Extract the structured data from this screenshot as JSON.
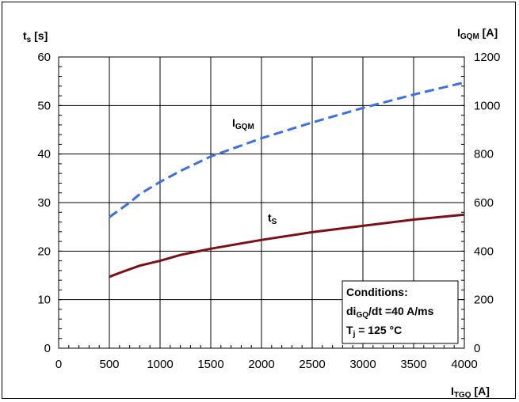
{
  "chart_data": {
    "type": "line",
    "x_axis": {
      "label_main": "I",
      "label_sub": "TGQ",
      "label_unit": "[A]",
      "range": [
        0,
        4000
      ],
      "ticks": [
        0,
        500,
        1000,
        1500,
        2000,
        2500,
        3000,
        3500,
        4000
      ],
      "tick_labels": [
        "0",
        "500",
        "1000",
        "1500",
        "2000",
        "2500",
        "3000",
        "3500",
        "4000"
      ]
    },
    "y_left": {
      "label_main": "t",
      "label_sub": "s",
      "label_unit": "[s]",
      "range": [
        0,
        60
      ],
      "ticks": [
        0,
        10,
        20,
        30,
        40,
        50,
        60
      ],
      "tick_labels": [
        "0",
        "10",
        "20",
        "30",
        "40",
        "50",
        "60"
      ]
    },
    "y_right": {
      "label_main": "I",
      "label_sub": "GQM",
      "label_unit": "[A]",
      "range": [
        0,
        1200
      ],
      "ticks": [
        0,
        200,
        400,
        600,
        800,
        1000,
        1200
      ],
      "tick_labels": [
        "0",
        "200",
        "400",
        "600",
        "800",
        "1000",
        "1200"
      ]
    },
    "grid": true,
    "series": [
      {
        "name_main": "I",
        "name_sub": "GQM",
        "axis": "right",
        "color": "#3a6fe8",
        "style": "dashed",
        "x": [
          500,
          600,
          700,
          800,
          1000,
          1200,
          1500,
          2000,
          2500,
          3000,
          3500,
          4000
        ],
        "y": [
          540,
          570,
          600,
          635,
          685,
          730,
          790,
          865,
          930,
          990,
          1045,
          1095
        ]
      },
      {
        "name_main": "t",
        "name_sub": "S",
        "axis": "left",
        "color": "#7b0f16",
        "style": "solid",
        "x": [
          500,
          600,
          800,
          1000,
          1200,
          1500,
          2000,
          2500,
          3000,
          3500,
          4000
        ],
        "y": [
          14.7,
          15.5,
          17.0,
          18.0,
          19.2,
          20.5,
          22.3,
          23.9,
          25.2,
          26.5,
          27.5
        ]
      }
    ],
    "annotations": {
      "box_title": "Conditions:",
      "line1_main": "di",
      "line1_sub": "GQ",
      "line1_rest": "/dt =40 A/ms",
      "line2_main": "T",
      "line2_sub": "j",
      "line2_rest": " = 125 °C"
    }
  }
}
